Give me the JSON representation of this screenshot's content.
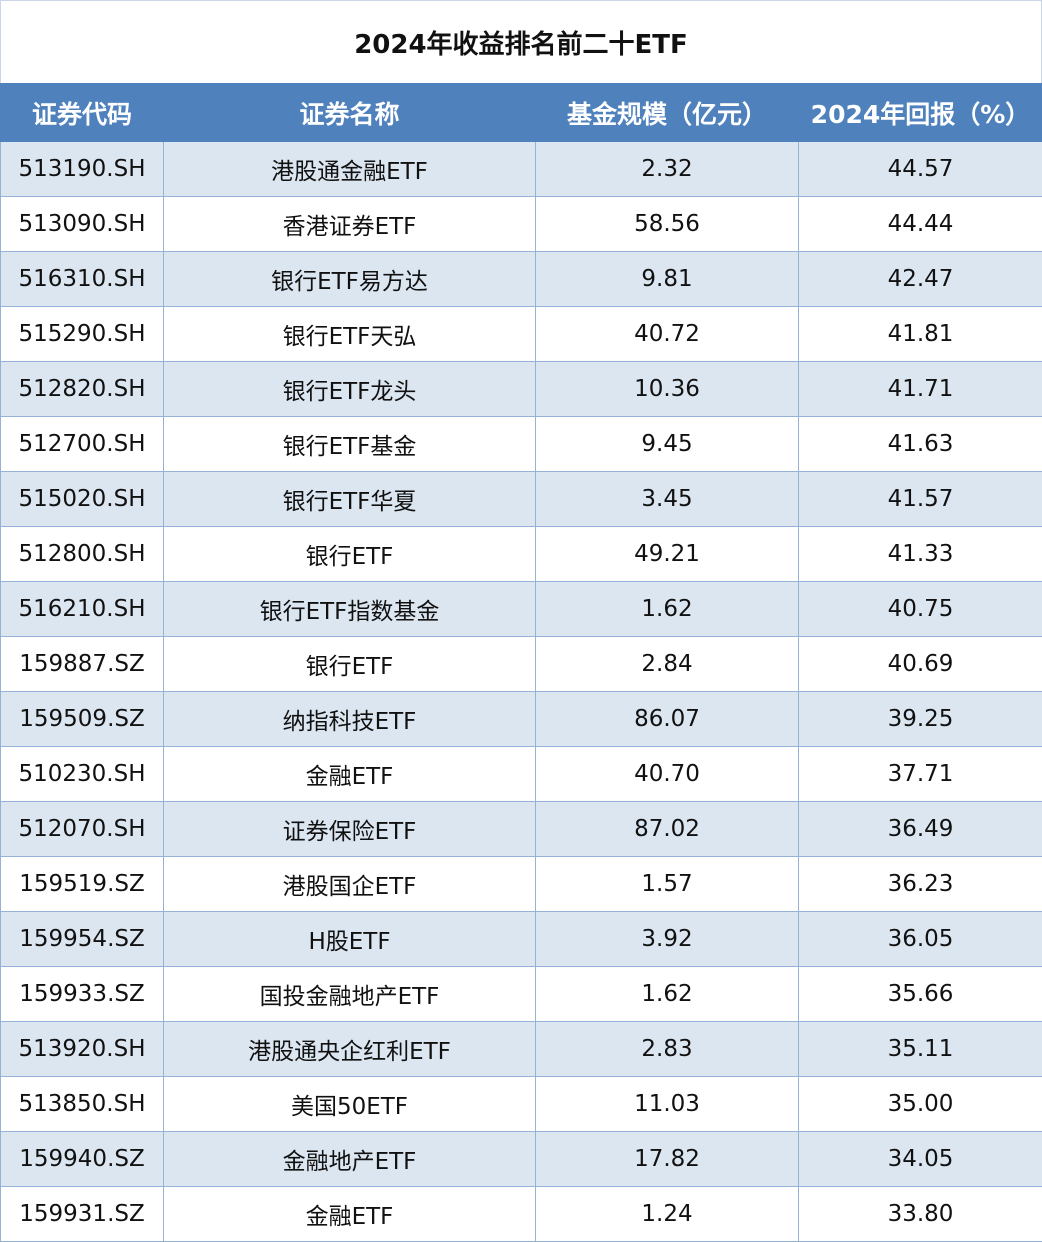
{
  "title": "2024年收益排名前二十ETF",
  "table": {
    "headers": [
      "证券代码",
      "证券名称",
      "基金规模（亿元）",
      "2024年回报（%）"
    ],
    "rows": [
      [
        "513190.SH",
        "港股通金融ETF",
        "2.32",
        "44.57"
      ],
      [
        "513090.SH",
        "香港证券ETF",
        "58.56",
        "44.44"
      ],
      [
        "516310.SH",
        "银行ETF易方达",
        "9.81",
        "42.47"
      ],
      [
        "515290.SH",
        "银行ETF天弘",
        "40.72",
        "41.81"
      ],
      [
        "512820.SH",
        "银行ETF龙头",
        "10.36",
        "41.71"
      ],
      [
        "512700.SH",
        "银行ETF基金",
        "9.45",
        "41.63"
      ],
      [
        "515020.SH",
        "银行ETF华夏",
        "3.45",
        "41.57"
      ],
      [
        "512800.SH",
        "银行ETF",
        "49.21",
        "41.33"
      ],
      [
        "516210.SH",
        "银行ETF指数基金",
        "1.62",
        "40.75"
      ],
      [
        "159887.SZ",
        "银行ETF",
        "2.84",
        "40.69"
      ],
      [
        "159509.SZ",
        "纳指科技ETF",
        "86.07",
        "39.25"
      ],
      [
        "510230.SH",
        "金融ETF",
        "40.70",
        "37.71"
      ],
      [
        "512070.SH",
        "证券保险ETF",
        "87.02",
        "36.49"
      ],
      [
        "159519.SZ",
        "港股国企ETF",
        "1.57",
        "36.23"
      ],
      [
        "159954.SZ",
        "H股ETF",
        "3.92",
        "36.05"
      ],
      [
        "159933.SZ",
        "国投金融地产ETF",
        "1.62",
        "35.66"
      ],
      [
        "513920.SH",
        "港股通央企红利ETF",
        "2.83",
        "35.11"
      ],
      [
        "513850.SH",
        "美国50ETF",
        "11.03",
        "35.00"
      ],
      [
        "159940.SZ",
        "金融地产ETF",
        "17.82",
        "34.05"
      ],
      [
        "159931.SZ",
        "金融ETF",
        "1.24",
        "33.80"
      ]
    ]
  }
}
